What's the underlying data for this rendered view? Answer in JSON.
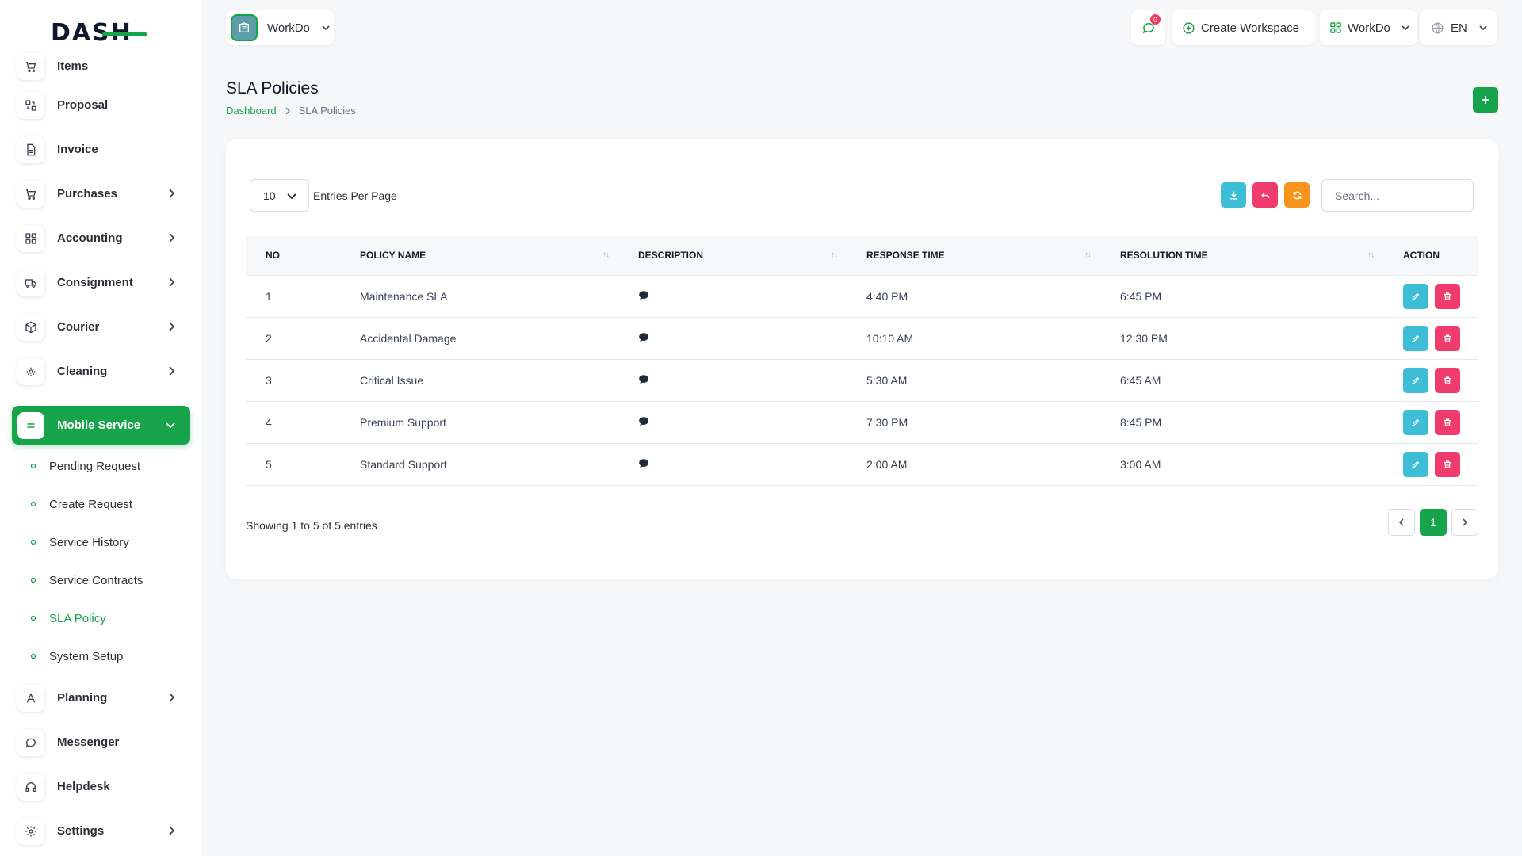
{
  "brand": {
    "logo_text": "DASH"
  },
  "sidebar": {
    "items": [
      {
        "label": "Items",
        "icon": "cart-icon"
      },
      {
        "label": "Proposal",
        "icon": "proposal-icon"
      },
      {
        "label": "Invoice",
        "icon": "file-icon"
      },
      {
        "label": "Purchases",
        "icon": "cart-icon"
      },
      {
        "label": "Accounting",
        "icon": "grid-icon"
      },
      {
        "label": "Consignment",
        "icon": "truck-icon"
      },
      {
        "label": "Courier",
        "icon": "box-icon"
      },
      {
        "label": "Cleaning",
        "icon": "sun-icon"
      },
      {
        "label": "Mobile Service",
        "icon": "menu-icon"
      },
      {
        "label": "Planning",
        "icon": "planning-icon"
      },
      {
        "label": "Messenger",
        "icon": "chat-icon"
      },
      {
        "label": "Helpdesk",
        "icon": "headset-icon"
      },
      {
        "label": "Settings",
        "icon": "gear-icon"
      }
    ],
    "sub_items": [
      {
        "label": "Pending Request"
      },
      {
        "label": "Create Request"
      },
      {
        "label": "Service History"
      },
      {
        "label": "Service Contracts"
      },
      {
        "label": "SLA Policy"
      },
      {
        "label": "System Setup"
      }
    ],
    "active_item": "Mobile Service",
    "active_sub_item": "SLA Policy"
  },
  "header": {
    "workspace_name": "WorkDo",
    "message_count": "0",
    "create_workspace_label": "Create Workspace",
    "workspace_menu_label": "WorkDo",
    "language": "EN"
  },
  "page": {
    "title": "SLA Policies",
    "breadcrumb": {
      "home": "Dashboard",
      "current": "SLA Policies"
    }
  },
  "table_controls": {
    "per_page_value": "10",
    "per_page_label": "Entries Per Page",
    "search_placeholder": "Search..."
  },
  "table": {
    "columns": [
      "No",
      "Policy Name",
      "Description",
      "Response Time",
      "Resolution Time",
      "Action"
    ],
    "rows": [
      {
        "no": "1",
        "name": "Maintenance SLA",
        "response": "4:40 PM",
        "resolution": "6:45 PM"
      },
      {
        "no": "2",
        "name": "Accidental Damage",
        "response": "10:10 AM",
        "resolution": "12:30 PM"
      },
      {
        "no": "3",
        "name": "Critical Issue",
        "response": "5:30 AM",
        "resolution": "6:45 AM"
      },
      {
        "no": "4",
        "name": "Premium Support",
        "response": "7:30 PM",
        "resolution": "8:45 PM"
      },
      {
        "no": "5",
        "name": "Standard Support",
        "response": "2:00 AM",
        "resolution": "3:00 AM"
      }
    ]
  },
  "footer": {
    "showing_text": "Showing 1 to 5 of 5 entries",
    "current_page": "1"
  },
  "colors": {
    "accent": "#17a34a",
    "info": "#3ebed6",
    "danger": "#ef3b6d",
    "warning": "#f7941d"
  }
}
